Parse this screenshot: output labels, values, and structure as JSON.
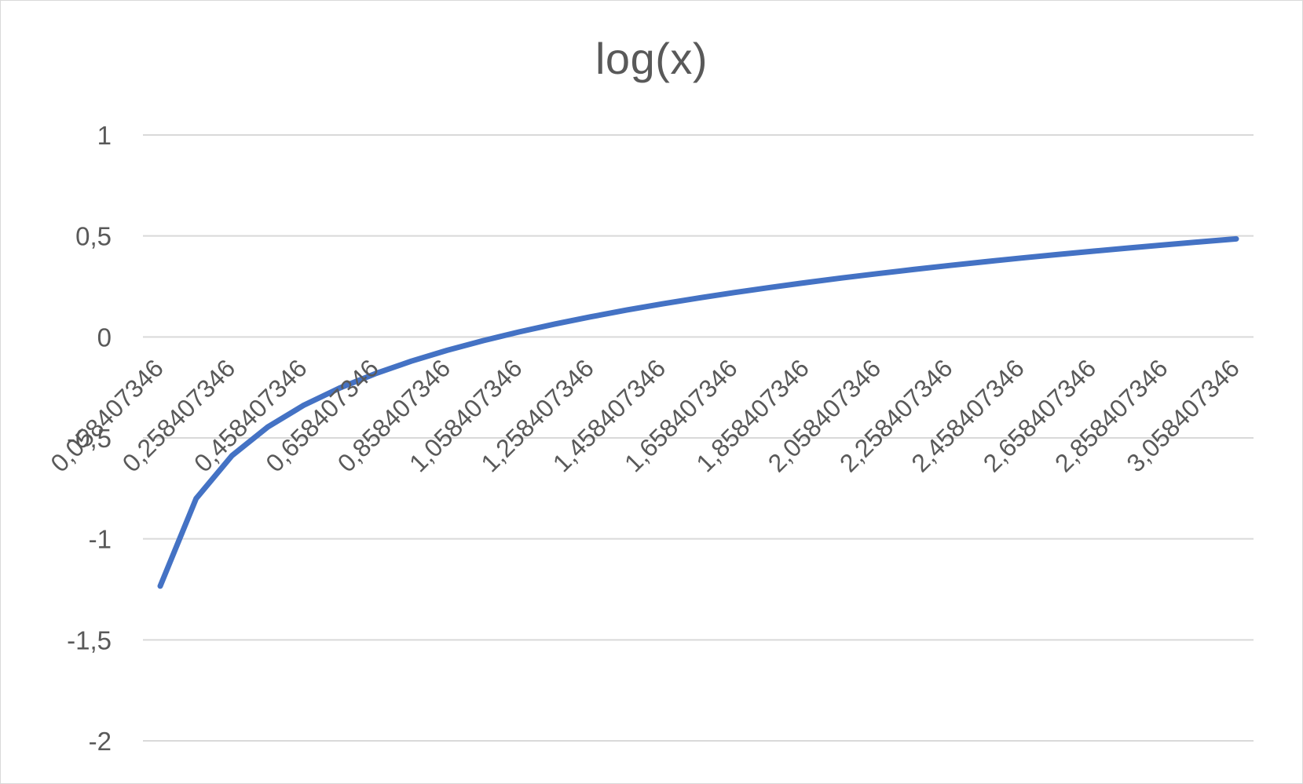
{
  "chart_data": {
    "type": "line",
    "title": "log(x)",
    "xlabel": "",
    "ylabel": "",
    "ylim": [
      -2,
      1
    ],
    "yticks": [
      "1",
      "0,5",
      "0",
      "-0,5",
      "-1",
      "-1,5",
      "-2"
    ],
    "ytick_values": [
      1,
      0.5,
      0,
      -0.5,
      -1,
      -1.5,
      -2
    ],
    "categories": [
      "0,058407346",
      "0,258407346",
      "0,458407346",
      "0,658407346",
      "0,858407346",
      "1,058407346",
      "1,258407346",
      "1,458407346",
      "1,658407346",
      "1,858407346",
      "2,058407346",
      "2,258407346",
      "2,458407346",
      "2,658407346",
      "2,858407346",
      "3,058407346"
    ],
    "x": [
      0.058407346,
      0.158407346,
      0.258407346,
      0.358407346,
      0.458407346,
      0.558407346,
      0.658407346,
      0.758407346,
      0.858407346,
      0.958407346,
      1.058407346,
      1.158407346,
      1.258407346,
      1.358407346,
      1.458407346,
      1.558407346,
      1.658407346,
      1.758407346,
      1.858407346,
      1.958407346,
      2.058407346,
      2.158407346,
      2.258407346,
      2.358407346,
      2.458407346,
      2.558407346,
      2.658407346,
      2.758407346,
      2.858407346,
      2.958407346,
      3.058407346
    ],
    "series": [
      {
        "color": "#4472c4",
        "values": [
          -1.2335,
          -0.8002,
          -0.5877,
          -0.4456,
          -0.3384,
          -0.2531,
          -0.1818,
          -0.1201,
          -0.0663,
          -0.0184,
          0.0246,
          0.0638,
          0.0998,
          0.133,
          0.1638,
          0.1926,
          0.2196,
          0.2451,
          0.2691,
          0.2919,
          0.3135,
          0.3341,
          0.3537,
          0.3725,
          0.3906,
          0.4079,
          0.4245,
          0.4406,
          0.456,
          0.471,
          0.4855
        ]
      }
    ],
    "grid": true,
    "legend": "none"
  }
}
